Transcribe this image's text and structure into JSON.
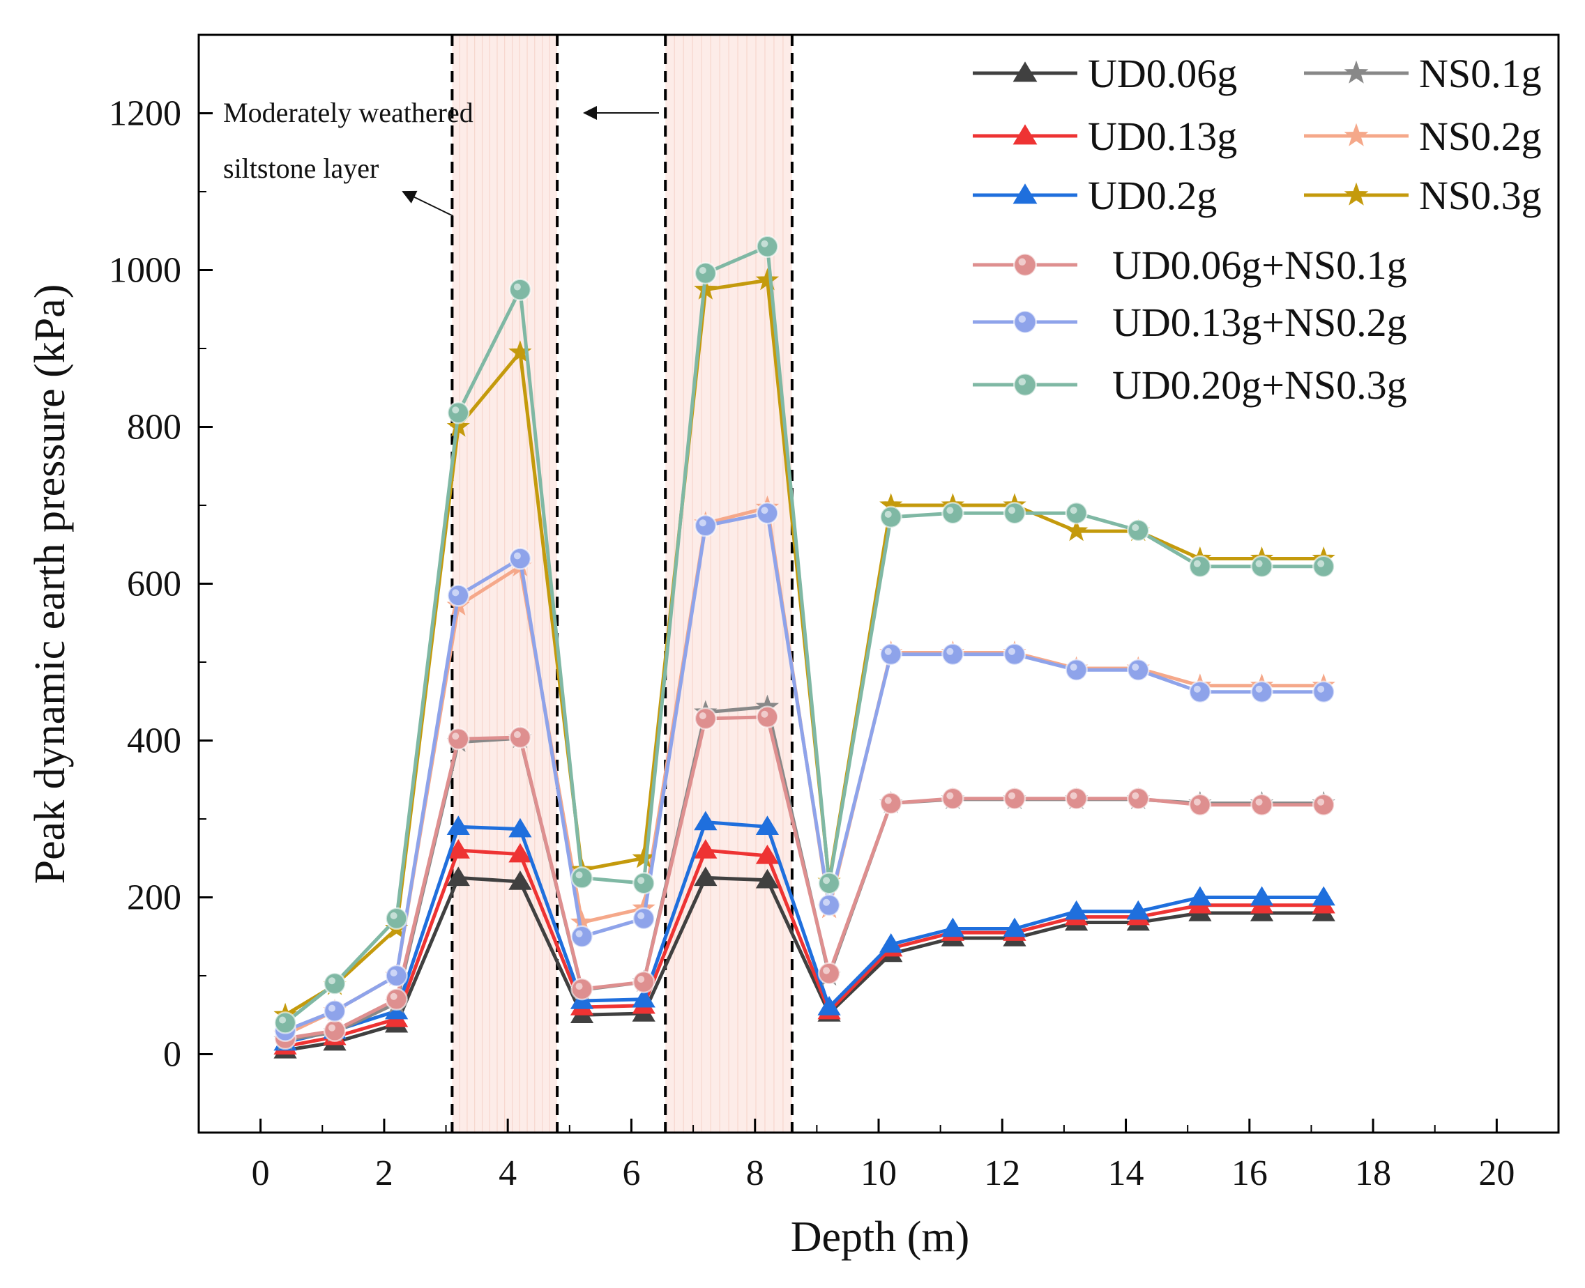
{
  "chart_data": {
    "type": "line",
    "xlabel": "Depth (m)",
    "ylabel": "Peak dynamic earth pressure (kPa)",
    "xlim": [
      -1,
      21
    ],
    "ylim": [
      -100,
      1300
    ],
    "xticks": [
      0,
      2,
      4,
      6,
      8,
      10,
      12,
      14,
      16,
      18,
      20
    ],
    "yticks": [
      0,
      200,
      400,
      600,
      800,
      1000,
      1200
    ],
    "grid": false,
    "legend_position": "top-right",
    "annotation": {
      "line1": "Moderately weathered",
      "line2": "siltstone layer"
    },
    "bands": [
      {
        "from": 3.1,
        "to": 4.8
      },
      {
        "from": 6.55,
        "to": 8.6
      }
    ],
    "x": [
      0.4,
      1.2,
      2.2,
      3.2,
      4.2,
      5.2,
      6.2,
      7.2,
      8.2,
      9.2,
      10.2,
      11.2,
      12.2,
      13.2,
      14.2,
      15.2,
      16.2,
      17.2
    ],
    "series": [
      {
        "name": "UD0.06g",
        "color": "#404040",
        "marker": "triangle",
        "values": [
          5,
          15,
          38,
          225,
          220,
          50,
          52,
          225,
          222,
          52,
          128,
          148,
          148,
          168,
          168,
          180,
          180,
          180
        ]
      },
      {
        "name": "UD0.13g",
        "color": "#ee3333",
        "marker": "triangle",
        "values": [
          10,
          22,
          45,
          260,
          255,
          60,
          62,
          260,
          253,
          55,
          135,
          155,
          155,
          175,
          175,
          190,
          190,
          190
        ]
      },
      {
        "name": "UD0.2g",
        "color": "#1f6fdd",
        "marker": "triangle",
        "values": [
          15,
          30,
          55,
          290,
          287,
          68,
          70,
          296,
          290,
          60,
          140,
          160,
          160,
          182,
          182,
          200,
          200,
          200
        ]
      },
      {
        "name": "NS0.1g",
        "color": "#888888",
        "marker": "star",
        "values": [
          18,
          28,
          65,
          398,
          403,
          82,
          92,
          436,
          443,
          100,
          320,
          325,
          325,
          325,
          325,
          320,
          320,
          320
        ]
      },
      {
        "name": "NS0.2g",
        "color": "#f5a88a",
        "marker": "star",
        "values": [
          25,
          55,
          100,
          572,
          622,
          168,
          186,
          677,
          697,
          186,
          512,
          512,
          512,
          492,
          492,
          470,
          470,
          470
        ]
      },
      {
        "name": "NS0.3g",
        "color": "#c49a0c",
        "marker": "star",
        "values": [
          50,
          88,
          160,
          800,
          895,
          235,
          250,
          975,
          987,
          220,
          700,
          700,
          700,
          667,
          667,
          632,
          632,
          632
        ]
      },
      {
        "name": "UD0.06g+NS0.1g",
        "color": "#de8f8f",
        "marker": "circle",
        "values": [
          20,
          30,
          70,
          402,
          404,
          83,
          92,
          428,
          430,
          103,
          320,
          326,
          326,
          326,
          326,
          318,
          318,
          318
        ]
      },
      {
        "name": "UD0.13g+NS0.2g",
        "color": "#8ea3ea",
        "marker": "circle",
        "values": [
          30,
          55,
          100,
          585,
          632,
          150,
          173,
          674,
          690,
          190,
          510,
          510,
          510,
          490,
          490,
          462,
          462,
          462
        ]
      },
      {
        "name": "UD0.20g+NS0.3g",
        "color": "#7fb8a4",
        "marker": "circle",
        "values": [
          40,
          90,
          173,
          818,
          975,
          225,
          218,
          996,
          1030,
          218,
          685,
          690,
          690,
          690,
          668,
          622,
          622,
          622
        ]
      }
    ]
  }
}
